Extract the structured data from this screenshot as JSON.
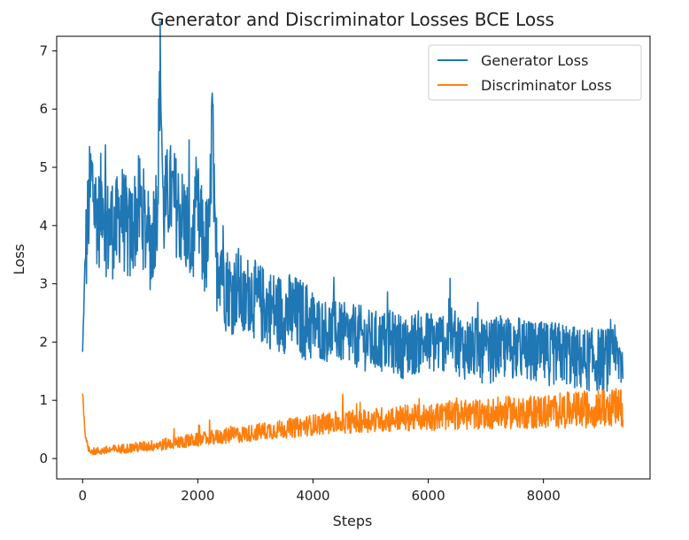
{
  "chart_data": {
    "type": "line",
    "title": "Generator and Discriminator Losses BCE Loss",
    "xlabel": "Steps",
    "ylabel": "Loss",
    "xlim": [
      -450,
      9850
    ],
    "ylim": [
      -0.35,
      7.25
    ],
    "xticks": [
      0,
      2000,
      4000,
      6000,
      8000
    ],
    "yticks": [
      0,
      1,
      2,
      3,
      4,
      5,
      6,
      7
    ],
    "grid": false,
    "legend_position": "top-right",
    "series": [
      {
        "name": "Generator Loss",
        "color": "#1f77b4",
        "x": [
          0,
          40,
          80,
          120,
          160,
          220,
          280,
          350,
          420,
          500,
          580,
          660,
          740,
          820,
          900,
          1000,
          1100,
          1200,
          1300,
          1350,
          1400,
          1500,
          1600,
          1700,
          1800,
          1900,
          2000,
          2100,
          2200,
          2250,
          2300,
          2400,
          2500,
          2600,
          2700,
          2800,
          2900,
          3000,
          3200,
          3400,
          3600,
          3800,
          4000,
          4200,
          4400,
          4600,
          4800,
          5000,
          5200,
          5400,
          5600,
          5800,
          6000,
          6200,
          6400,
          6600,
          6800,
          7000,
          7200,
          7400,
          7600,
          7800,
          8000,
          8200,
          8400,
          8600,
          8800,
          9000,
          9200,
          9380
        ],
        "y": [
          1.8,
          3.3,
          3.9,
          4.5,
          4.8,
          4.3,
          4.1,
          4.6,
          3.9,
          4.0,
          3.9,
          4.3,
          4.0,
          3.8,
          4.1,
          4.4,
          3.9,
          3.7,
          4.5,
          6.9,
          4.2,
          4.6,
          4.4,
          4.2,
          4.0,
          3.7,
          4.2,
          3.6,
          3.7,
          6.05,
          3.4,
          3.5,
          3.0,
          2.8,
          3.0,
          2.6,
          2.9,
          2.7,
          2.6,
          2.5,
          2.5,
          2.4,
          2.3,
          2.2,
          2.2,
          2.1,
          2.1,
          2.0,
          2.0,
          2.0,
          1.9,
          2.0,
          2.0,
          2.0,
          2.1,
          1.9,
          1.9,
          1.8,
          1.9,
          1.9,
          1.9,
          1.8,
          1.8,
          1.8,
          1.8,
          1.7,
          1.7,
          1.7,
          1.7,
          1.7
        ]
      },
      {
        "name": "Discriminator Loss",
        "color": "#ff7f0e",
        "x": [
          0,
          30,
          60,
          100,
          150,
          200,
          300,
          400,
          500,
          600,
          800,
          1000,
          1200,
          1400,
          1600,
          1800,
          2000,
          2200,
          2400,
          2600,
          2800,
          3000,
          3200,
          3400,
          3600,
          3800,
          4000,
          4200,
          4400,
          4600,
          4800,
          5000,
          5200,
          5400,
          5600,
          5800,
          6000,
          6200,
          6400,
          6600,
          6800,
          7000,
          7200,
          7400,
          7600,
          7800,
          8000,
          8200,
          8400,
          8600,
          8800,
          9000,
          9200,
          9380
        ],
        "y": [
          1.15,
          0.6,
          0.3,
          0.18,
          0.14,
          0.12,
          0.13,
          0.14,
          0.15,
          0.16,
          0.18,
          0.2,
          0.22,
          0.24,
          0.27,
          0.3,
          0.32,
          0.35,
          0.38,
          0.4,
          0.42,
          0.45,
          0.48,
          0.5,
          0.52,
          0.55,
          0.58,
          0.6,
          0.62,
          0.63,
          0.65,
          0.66,
          0.67,
          0.68,
          0.7,
          0.7,
          0.72,
          0.73,
          0.74,
          0.75,
          0.76,
          0.77,
          0.78,
          0.79,
          0.8,
          0.8,
          0.81,
          0.82,
          0.83,
          0.84,
          0.85,
          0.86,
          0.87,
          0.88
        ]
      }
    ]
  }
}
